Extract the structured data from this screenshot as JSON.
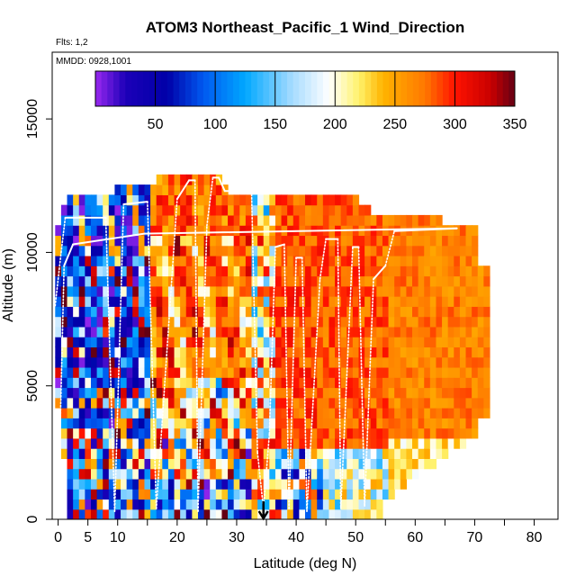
{
  "chart_data": {
    "type": "heatmap",
    "title": "ATOM3 Northeast_Pacific_1 Wind_Direction",
    "flights_label": "Flts: 1,2",
    "date_label": "MMDD: 0928,1001",
    "xlabel": "Latitude (deg N)",
    "ylabel": "Altitude (m)",
    "xlim": [
      -1,
      84
    ],
    "ylim": [
      0,
      17500
    ],
    "x_ticks": [
      0,
      5,
      10,
      20,
      30,
      40,
      50,
      60,
      70,
      80
    ],
    "x_minor_ticks": [
      15,
      25,
      35,
      45,
      55,
      65,
      75,
      85
    ],
    "y_ticks": [
      0,
      5000,
      10000,
      15000
    ],
    "colorbar": {
      "range": [
        0,
        350
      ],
      "ticks": [
        50,
        100,
        150,
        200,
        250,
        300,
        350
      ],
      "stops": [
        {
          "v": 0,
          "c": "#9a28f0"
        },
        {
          "v": 25,
          "c": "#1c00b8"
        },
        {
          "v": 60,
          "c": "#0000a8"
        },
        {
          "v": 90,
          "c": "#0058f0"
        },
        {
          "v": 125,
          "c": "#00a8ff"
        },
        {
          "v": 165,
          "c": "#a8dcff"
        },
        {
          "v": 195,
          "c": "#ffffff"
        },
        {
          "v": 220,
          "c": "#fff26a"
        },
        {
          "v": 240,
          "c": "#ffb400"
        },
        {
          "v": 275,
          "c": "#ff7800"
        },
        {
          "v": 300,
          "c": "#ff1200"
        },
        {
          "v": 330,
          "c": "#c80000"
        },
        {
          "v": 350,
          "c": "#640014"
        }
      ]
    },
    "marker": {
      "x": 34.5,
      "y": 0,
      "symbol": "down-arrow"
    },
    "flight_track": [
      [
        -0.5,
        8000
      ],
      [
        0.5,
        10000
      ],
      [
        1.2,
        11300
      ],
      [
        8,
        11300
      ],
      [
        9.5,
        300
      ],
      [
        11,
        11800
      ],
      [
        15,
        11900
      ],
      [
        16.5,
        400
      ],
      [
        20,
        12000
      ],
      [
        22,
        12700
      ],
      [
        23,
        12700
      ],
      [
        23.5,
        300
      ],
      [
        25,
        11000
      ],
      [
        26,
        12800
      ],
      [
        27,
        12800
      ],
      [
        28,
        12300
      ],
      [
        32.5,
        12300
      ],
      [
        33.5,
        2500
      ],
      [
        34.5,
        400
      ],
      [
        35.5,
        3200
      ],
      [
        36.5,
        10200
      ],
      [
        38,
        10300
      ],
      [
        38.8,
        400
      ],
      [
        40,
        9800
      ],
      [
        41,
        9800
      ],
      [
        41.8,
        300
      ],
      [
        44,
        9000
      ],
      [
        45,
        10500
      ],
      [
        47,
        10500
      ],
      [
        47.5,
        400
      ],
      [
        49.5,
        10200
      ],
      [
        50.5,
        10200
      ],
      [
        51.5,
        500
      ],
      [
        53,
        9000
      ],
      [
        55,
        9500
      ],
      [
        56.5,
        10800
      ],
      [
        67,
        10900
      ],
      [
        14.5,
        10700
      ],
      [
        2.5,
        10300
      ],
      [
        1,
        9500
      ],
      [
        0,
        300
      ]
    ]
  }
}
